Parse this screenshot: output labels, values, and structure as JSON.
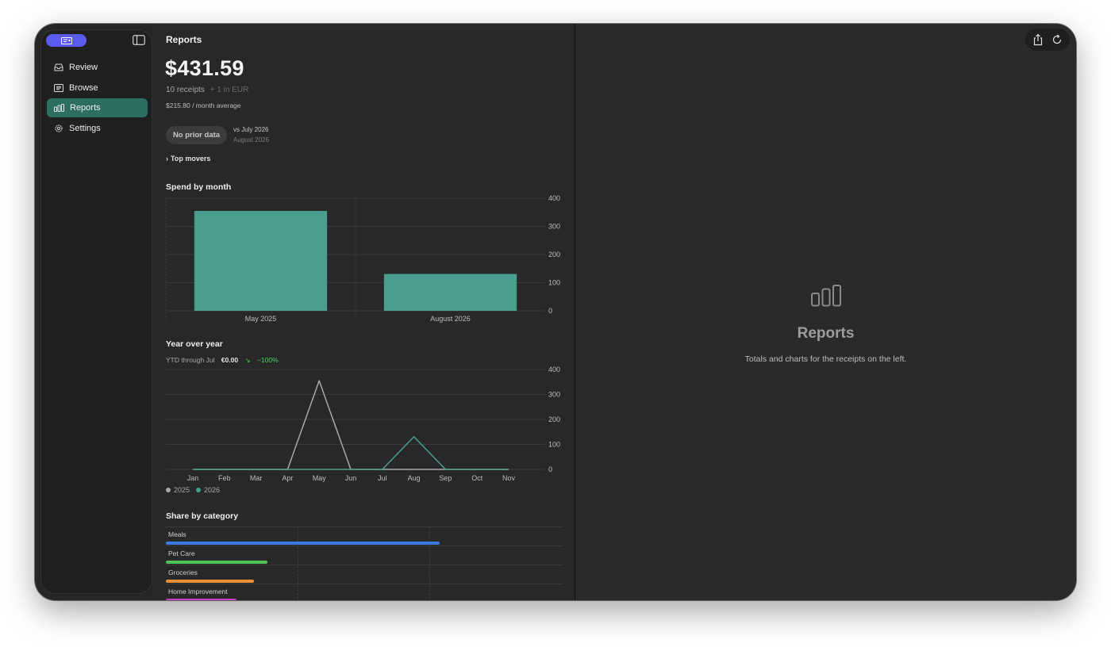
{
  "sidebar": {
    "items": [
      {
        "label": "Review",
        "icon": "tray-icon"
      },
      {
        "label": "Browse",
        "icon": "list-icon"
      },
      {
        "label": "Reports",
        "icon": "chart-bar-icon",
        "active": true
      },
      {
        "label": "Settings",
        "icon": "gear-icon"
      }
    ]
  },
  "reports": {
    "title": "Reports",
    "total": "$431.59",
    "receipts": "10 receipts",
    "extra_currency": "+ 1 in EUR",
    "average": "$215.80 / month average",
    "comparison_pill": "No prior data",
    "vs_label": "vs July 2026",
    "vs_sublabel": "August 2026",
    "top_movers": "Top movers",
    "section_spend": "Spend by month",
    "section_yoy": "Year over year",
    "ytd_label": "YTD through Jul",
    "ytd_value": "€0.00",
    "ytd_arrow": "↘",
    "ytd_change": "−100%",
    "section_category": "Share by category"
  },
  "detail": {
    "title": "Reports",
    "subtitle": "Totals and charts for the receipts on the left."
  },
  "colors": {
    "accent": "#5b5bf0",
    "active_nav": "#2d6e62",
    "bar": "#4a9e90",
    "line_2025": "#a8a8a8",
    "line_2026": "#4a9e90"
  },
  "chart_data": [
    {
      "type": "bar",
      "title": "Spend by month",
      "categories": [
        "May 2025",
        "August 2026"
      ],
      "values": [
        355,
        131
      ],
      "ylim": [
        0,
        400
      ],
      "yticks": [
        0,
        100,
        200,
        300,
        400
      ],
      "y_axis_side": "right",
      "grid": true
    },
    {
      "type": "line",
      "title": "Year over year",
      "x": [
        "Jan",
        "Feb",
        "Mar",
        "Apr",
        "May",
        "Jun",
        "Jul",
        "Aug",
        "Sep",
        "Oct",
        "Nov"
      ],
      "series": [
        {
          "name": "2025",
          "values": [
            0,
            0,
            0,
            0,
            355,
            0,
            0,
            0,
            0,
            0,
            0
          ],
          "color": "#a8a8a8"
        },
        {
          "name": "2026",
          "values": [
            0,
            0,
            0,
            0,
            0,
            0,
            0,
            131,
            0,
            0,
            0
          ],
          "color": "#4a9e90"
        }
      ],
      "ylim": [
        0,
        400
      ],
      "yticks": [
        0,
        100,
        200,
        300,
        400
      ],
      "y_axis_side": "right",
      "legend": "bottom-left",
      "grid": true
    },
    {
      "type": "bar",
      "title": "Share by category",
      "orientation": "horizontal",
      "categories": [
        "Meals",
        "Pet Care",
        "Groceries",
        "Home Improvement"
      ],
      "values": [
        0.69,
        0.256,
        0.222,
        0.178
      ],
      "colors": [
        "#3b7be6",
        "#4ec257",
        "#ee8d33",
        "#c83ec7"
      ]
    }
  ]
}
